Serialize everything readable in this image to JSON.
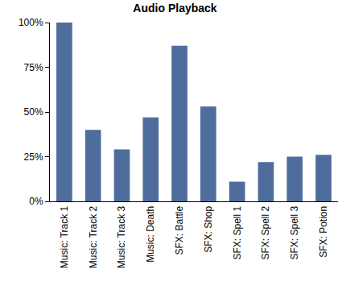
{
  "chart_data": {
    "type": "bar",
    "title": "Audio Playback",
    "categories": [
      "Music: Track 1",
      "Music: Track 2",
      "Music: Track 3",
      "Music: Death",
      "SFX: Battle",
      "SFX: Shop",
      "SFX: Spell 1",
      "SFX: Spell 2",
      "SFX: Spell 3",
      "SFX: Potion"
    ],
    "values": [
      100,
      40,
      29,
      47,
      87,
      53,
      11,
      22,
      25,
      26
    ],
    "color": "#4f6d9c",
    "ylim": [
      0,
      100
    ],
    "yticks": [
      {
        "value": 0,
        "label": "0%"
      },
      {
        "value": 25,
        "label": "25%"
      },
      {
        "value": 50,
        "label": "50%"
      },
      {
        "value": 75,
        "label": "75%"
      },
      {
        "value": 100,
        "label": "100%"
      }
    ],
    "grid": false
  }
}
